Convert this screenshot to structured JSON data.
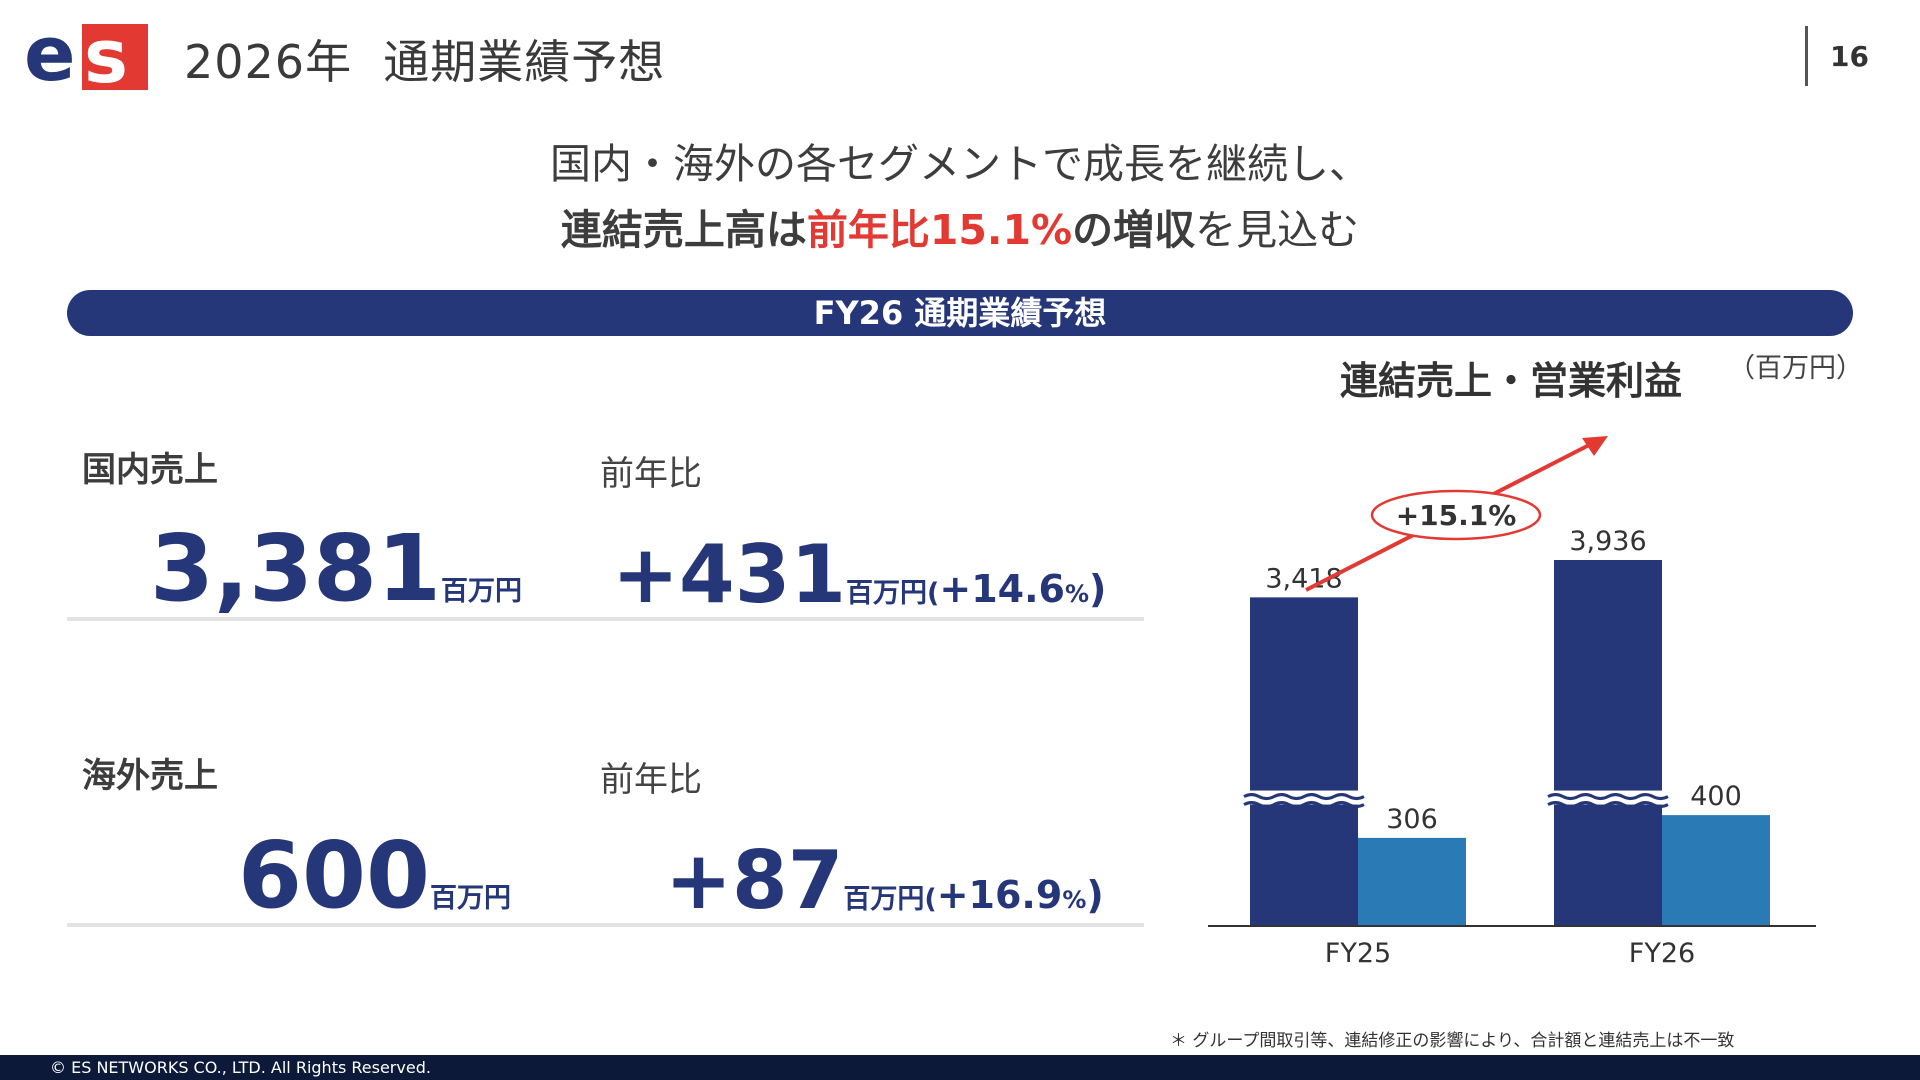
{
  "header": {
    "logo_text": "es",
    "title": "2026年  通期業績予想",
    "page_number": "16"
  },
  "headline": {
    "line1": "国内・海外の各セグメントで成長を継続し、",
    "line2_a": "連結売上高は",
    "line2_b": "前年比15.1%",
    "line2_c": "の増収",
    "line2_d": "を見込む"
  },
  "banner": {
    "label": "FY26 通期業績予想"
  },
  "domestic": {
    "label": "国内売上",
    "yoy_label": "前年比",
    "value": "3,381",
    "unit": "百万円",
    "change": "+431",
    "change_unit": "百万円(",
    "change_pct": "+14.6",
    "pct_sign": "%",
    "close": ")"
  },
  "overseas": {
    "label": "海外売上",
    "yoy_label": "前年比",
    "value": "600",
    "unit": "百万円",
    "change": "+87",
    "change_unit": "百万円(",
    "change_pct": "+16.9",
    "pct_sign": "%",
    "close": ")"
  },
  "chart_title": "連結売上・営業利益",
  "chart_unit": "（百万円）",
  "chart_data": {
    "type": "bar",
    "categories": [
      "FY25",
      "FY26"
    ],
    "series": [
      {
        "values": [
          3418,
          3936
        ],
        "color": "#263779"
      },
      {
        "values": [
          306,
          400
        ],
        "color": "#2a7bb5"
      }
    ],
    "value_labels": [
      [
        "3,418",
        "3,936"
      ],
      [
        "306",
        "400"
      ]
    ],
    "axis_break": true,
    "growth_annotation": "+15.1%",
    "arrow_color": "#e23a33"
  },
  "footnote": "＊ グループ間取引等、連結修正の影響により、合計額と連結売上は不一致",
  "footer": {
    "copyright": "© ES NETWORKS CO., LTD. All Rights Reserved."
  }
}
